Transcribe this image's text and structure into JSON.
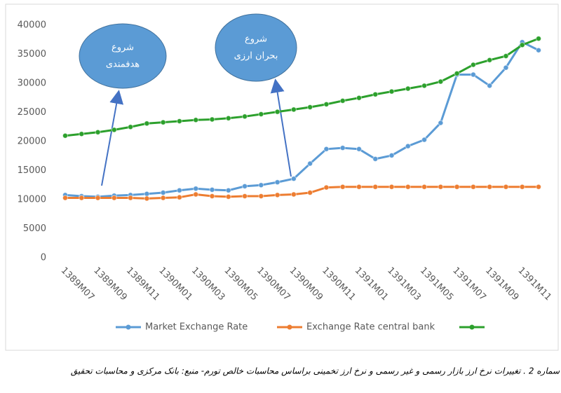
{
  "chart_data": {
    "type": "line",
    "categories": [
      "1389M07",
      null,
      "1389M09",
      null,
      "1389M11",
      null,
      "1390M01",
      null,
      "1390M03",
      null,
      "1390M05",
      null,
      "1390M07",
      null,
      "1390M09",
      null,
      "1390M11",
      null,
      "1391M01",
      null,
      "1391M03",
      null,
      "1391M05",
      null,
      "1391M07",
      null,
      "1391M09",
      null,
      "1391M11",
      null
    ],
    "series": [
      {
        "name": "Market Exchange Rate",
        "color": "#5b9bd5",
        "values": [
          10800,
          10600,
          10500,
          10700,
          10800,
          11000,
          11200,
          11600,
          11900,
          11700,
          11600,
          12300,
          12500,
          13000,
          13600,
          16200,
          18700,
          18900,
          18700,
          17000,
          17600,
          19200,
          20300,
          23200,
          31500,
          31500,
          29600,
          32700,
          37100,
          35700
        ]
      },
      {
        "name": "Exchange Rate central bank",
        "color": "#ed7d31",
        "values": [
          10300,
          10300,
          10300,
          10300,
          10300,
          10200,
          10300,
          10400,
          10900,
          10600,
          10500,
          10600,
          10600,
          10800,
          10900,
          11200,
          12100,
          12200,
          12200,
          12200,
          12200,
          12200,
          12200,
          12200,
          12200,
          12200,
          12200,
          12200,
          12200,
          12200
        ]
      },
      {
        "color": "#2ca02c",
        "values": [
          21000,
          21300,
          21600,
          22000,
          22500,
          23100,
          23300,
          23500,
          23700,
          23800,
          24000,
          24300,
          24700,
          25100,
          25500,
          25900,
          26400,
          27000,
          27500,
          28100,
          28600,
          29100,
          29600,
          30300,
          31700,
          33200,
          34000,
          34700,
          36600,
          37700
        ]
      }
    ],
    "ylim": [
      0,
      40000
    ],
    "yticks": [
      0,
      5000,
      10000,
      15000,
      20000,
      25000,
      30000,
      35000,
      40000
    ],
    "grid": false,
    "legend": "bottom",
    "annotations": [
      {
        "lines": [
          "شروع",
          "هدفمندی"
        ]
      },
      {
        "lines": [
          "شروع",
          "بحران ارزی"
        ]
      }
    ],
    "caption": "سماره 2 . تغییرات نرخ ارز بازار رسمی و غیر رسمی و نرخ ارز تخمینی براساس محاسبات خالص تورم- منبع: بانک مرکزی و محاسبات تحقیق"
  }
}
